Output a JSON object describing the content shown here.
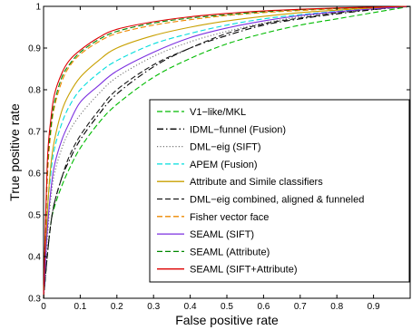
{
  "chart_data": {
    "type": "line",
    "title": "",
    "xlabel": "False positive rate",
    "ylabel": "True positive rate",
    "xlim": [
      0,
      1
    ],
    "ylim": [
      0.3,
      1
    ],
    "xticks": [
      0,
      0.1,
      0.2,
      0.3,
      0.4,
      0.5,
      0.6,
      0.7,
      0.8,
      0.9
    ],
    "xtick_labels": [
      "0",
      "0.1",
      "0.2",
      "0.3",
      "0.4",
      "0.5",
      "0.6",
      "0.7",
      "0.8",
      "0.9"
    ],
    "yticks": [
      0.3,
      0.4,
      0.5,
      0.6,
      0.7,
      0.8,
      0.9,
      1
    ],
    "ytick_labels": [
      "0.3",
      "0.4",
      "0.5",
      "0.6",
      "0.7",
      "0.8",
      "0.9",
      "1"
    ],
    "grid": false,
    "box": true,
    "legend_position": "lower-right",
    "x": [
      0,
      0.01,
      0.02,
      0.03,
      0.05,
      0.07,
      0.1,
      0.15,
      0.2,
      0.3,
      0.4,
      0.5,
      0.6,
      0.7,
      0.8,
      0.9,
      1
    ],
    "series": [
      {
        "name": "V1−like/MKL",
        "color": "#00bb00",
        "dash": "dashed",
        "values": [
          0.3,
          0.4,
          0.48,
          0.52,
          0.57,
          0.61,
          0.66,
          0.72,
          0.765,
          0.83,
          0.875,
          0.91,
          0.935,
          0.955,
          0.97,
          0.985,
          1.0
        ]
      },
      {
        "name": "IDML−funnel (Fusion)",
        "color": "#000000",
        "dash": "dashdot",
        "values": [
          0.3,
          0.4,
          0.48,
          0.53,
          0.59,
          0.63,
          0.68,
          0.74,
          0.79,
          0.855,
          0.9,
          0.93,
          0.955,
          0.97,
          0.982,
          0.992,
          1.0
        ]
      },
      {
        "name": "DML−eig (SIFT)",
        "color": "#777777",
        "dash": "dotted",
        "values": [
          0.3,
          0.44,
          0.54,
          0.6,
          0.66,
          0.7,
          0.74,
          0.79,
          0.83,
          0.88,
          0.915,
          0.94,
          0.96,
          0.975,
          0.985,
          0.993,
          1.0
        ]
      },
      {
        "name": "APEM (Fusion)",
        "color": "#00dddd",
        "dash": "dashed",
        "values": [
          0.3,
          0.5,
          0.6,
          0.66,
          0.72,
          0.76,
          0.8,
          0.84,
          0.87,
          0.91,
          0.935,
          0.955,
          0.97,
          0.98,
          0.988,
          0.995,
          1.0
        ]
      },
      {
        "name": "Attribute and Simile classifiers",
        "color": "#c8a000",
        "dash": "solid",
        "values": [
          0.3,
          0.5,
          0.62,
          0.68,
          0.75,
          0.79,
          0.83,
          0.87,
          0.9,
          0.93,
          0.95,
          0.965,
          0.976,
          0.985,
          0.991,
          0.996,
          1.0
        ]
      },
      {
        "name": "DML−eig combined, aligned & funneled",
        "color": "#1a1a1a",
        "dash": "dashed",
        "values": [
          0.3,
          0.4,
          0.48,
          0.53,
          0.59,
          0.64,
          0.69,
          0.75,
          0.8,
          0.86,
          0.9,
          0.935,
          0.958,
          0.972,
          0.984,
          0.993,
          1.0
        ]
      },
      {
        "name": "Fisher vector face",
        "color": "#ee8800",
        "dash": "dashed",
        "values": [
          0.3,
          0.58,
          0.7,
          0.76,
          0.82,
          0.855,
          0.885,
          0.915,
          0.935,
          0.955,
          0.968,
          0.978,
          0.985,
          0.99,
          0.994,
          0.997,
          1.0
        ]
      },
      {
        "name": "SEAML (SIFT)",
        "color": "#7b2fe0",
        "dash": "solid",
        "values": [
          0.3,
          0.46,
          0.56,
          0.62,
          0.68,
          0.72,
          0.77,
          0.81,
          0.845,
          0.89,
          0.925,
          0.948,
          0.965,
          0.978,
          0.987,
          0.994,
          1.0
        ]
      },
      {
        "name": "SEAML (Attribute)",
        "color": "#008800",
        "dash": "dashed",
        "values": [
          0.3,
          0.6,
          0.71,
          0.77,
          0.83,
          0.86,
          0.89,
          0.92,
          0.94,
          0.96,
          0.972,
          0.98,
          0.987,
          0.992,
          0.995,
          0.998,
          1.0
        ]
      },
      {
        "name": "SEAML (SIFT+Attribute)",
        "color": "#dd0000",
        "dash": "solid",
        "values": [
          0.3,
          0.62,
          0.73,
          0.79,
          0.84,
          0.87,
          0.895,
          0.925,
          0.945,
          0.963,
          0.975,
          0.983,
          0.989,
          0.993,
          0.996,
          0.998,
          1.0
        ]
      }
    ]
  }
}
